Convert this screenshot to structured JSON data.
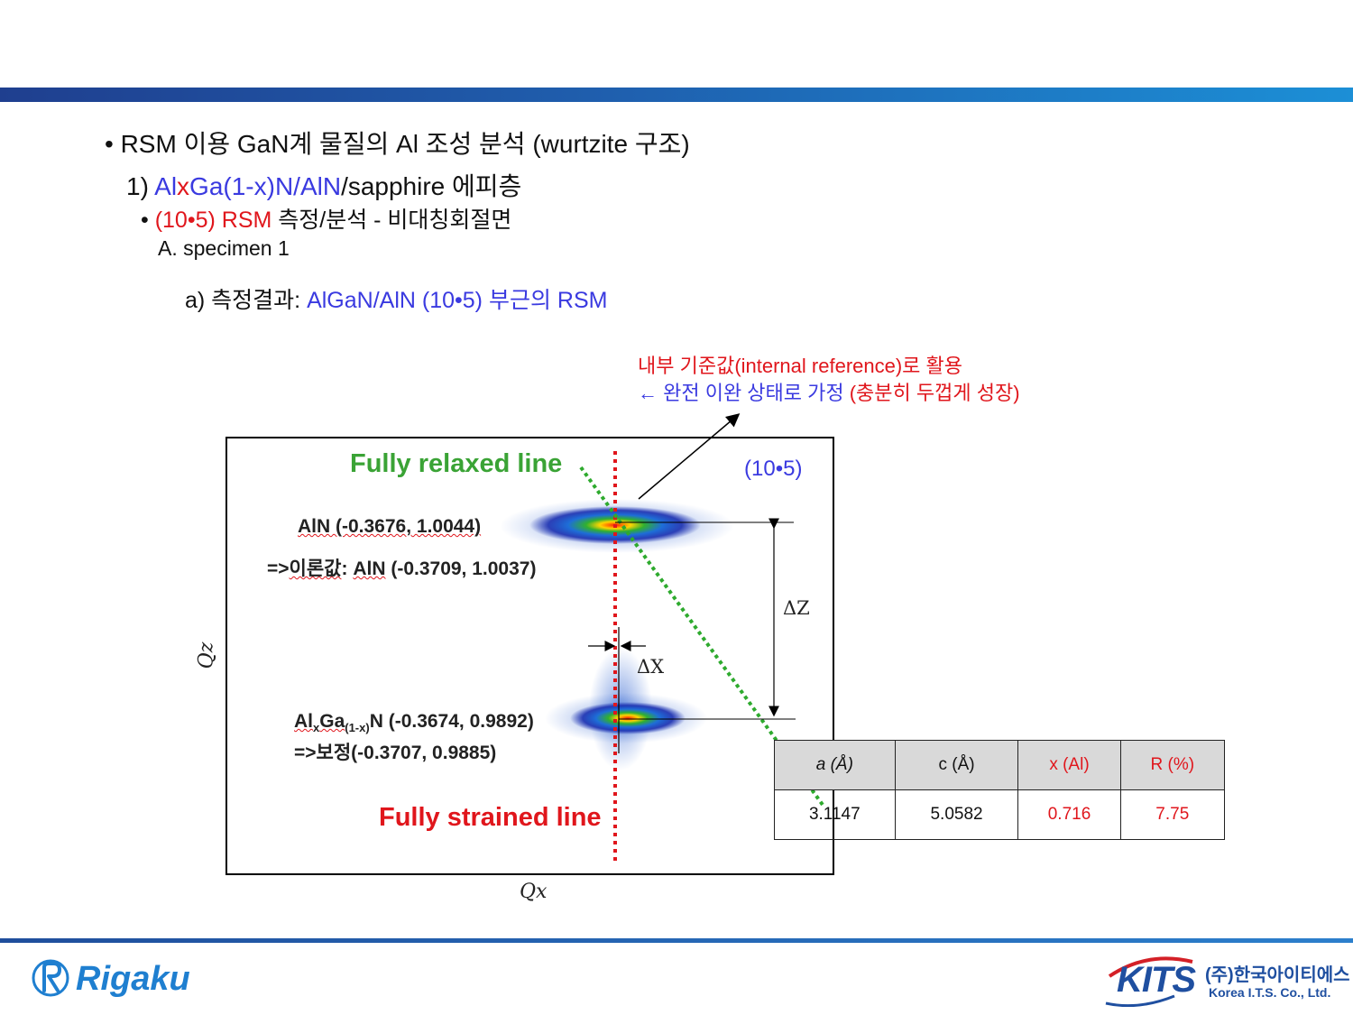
{
  "slide": {
    "line1": "• RSM 이용 GaN계 물질의 Al 조성 분석 (wurtzite 구조)",
    "line2_prefix": "1) ",
    "line2_al": "Al",
    "line2_x": "x",
    "line2_ga": "Ga(1-x)N/AlN",
    "line2_suffix": "/sapphire 에피층",
    "line3_bullet": "• ",
    "line3_red": "(10•5) RSM",
    "line3_rest": " 측정/분석 - 비대칭회절면",
    "line4": "A. specimen 1",
    "line5_prefix": "a) 측정결과: ",
    "line5_blue": "AlGaN/AlN (10•5) 부근의 RSM"
  },
  "annotation": {
    "line1": "내부 기준값(internal reference)로 활용",
    "line2_arrow": "← 완전 이완 상태로 가정 ",
    "line2_paren": "(충분히 두껍게 성장)"
  },
  "rsm_plot": {
    "relaxed_label": "Fully relaxed line",
    "strained_label": "Fully strained line",
    "reflection_label": "(10•5)",
    "aln_peak": "AlN (-0.3676, 1.0044)",
    "aln_theory_prefix": "=>",
    "aln_theory_word": "이론값",
    "aln_theory_colon": ": ",
    "aln_theory_aln": "AlN",
    "aln_theory_value": " (-0.3709, 1.0037)",
    "algan_al": "Al",
    "algan_x": "x",
    "algan_ga": "Ga",
    "algan_sub": "(1-x)",
    "algan_value": "N (-0.3674, 0.9892)",
    "algan_corrected": "=>보정(-0.3707, 0.9885)",
    "x_axis_label": "Qx",
    "y_axis_label": "Qz",
    "delta_x": "ΔX",
    "delta_z": "ΔZ",
    "colors": {
      "relaxed": "#3aa335",
      "strained": "#e0161c"
    }
  },
  "results_table": {
    "headers": [
      "a (Å)",
      "c (Å)",
      "x (Al)",
      "R (%)"
    ],
    "values": [
      "3.1147",
      "5.0582",
      "0.716",
      "7.75"
    ]
  },
  "logos": {
    "rigaku": "Rigaku",
    "kits_mark": "KITS",
    "kits_korean": "(주)한국아이티에스",
    "kits_english": "Korea I.T.S. Co., Ltd."
  }
}
